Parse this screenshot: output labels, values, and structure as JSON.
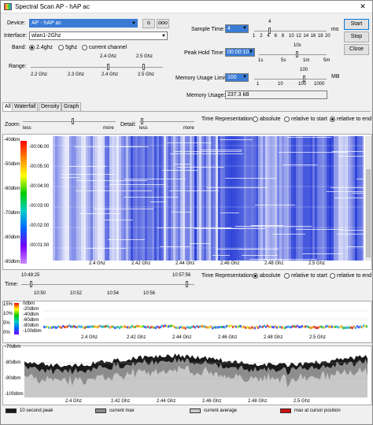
{
  "window": {
    "title": "Spectral Scan AP - hAP ac"
  },
  "device": {
    "label": "Device:",
    "value": "AP - hAP ac",
    "btn1": "o",
    "btn2": "ooo"
  },
  "interface": {
    "label": "Interface:",
    "value": "wlan1-2Ghz"
  },
  "band": {
    "label": "Band:",
    "options": [
      "2.4ghz",
      "5ghz",
      "current channel"
    ],
    "selected": 0
  },
  "range": {
    "label": "Range:",
    "top_ticks": [
      "2.4 Ghz",
      "2.5 Ghz"
    ],
    "bottom_ticks": [
      "2.2 Ghz",
      "2.3 Ghz",
      "2.4 Ghz",
      "2.5 Ghz"
    ]
  },
  "sample_time": {
    "label": "Sample Time:",
    "value": "4",
    "unit": "ms",
    "top_tick": "4",
    "ticks": [
      "1",
      "2",
      "4",
      "6",
      "8",
      "10",
      "12",
      "14",
      "16",
      "18",
      "20"
    ]
  },
  "peak_hold": {
    "label": "Peak Hold Time:",
    "value": "00:00:10",
    "top_tick": "10s",
    "ticks": [
      "1s",
      "5s",
      "1m",
      "5m"
    ]
  },
  "memory_limit": {
    "label": "Memory Usage Limit:",
    "value": "100",
    "unit": "MB",
    "top_tick": "100",
    "ticks": [
      "1",
      "10",
      "100",
      "1000"
    ]
  },
  "memory_usage": {
    "label": "Memory Usage:",
    "value": "237.3 kB"
  },
  "buttons": {
    "start": "Start",
    "stop": "Stop",
    "close": "Close"
  },
  "tabs": [
    "All",
    "Waterfall",
    "Density",
    "Graph"
  ],
  "zoom": {
    "label": "Zoom:",
    "less": "less",
    "more": "more"
  },
  "detail": {
    "label": "Detail:",
    "less": "less",
    "more": "more"
  },
  "time_rep1": {
    "label": "Time Representation:",
    "options": [
      "absolute",
      "relative to start",
      "relative to end"
    ],
    "selected": 2
  },
  "waterfall": {
    "db_ticks": [
      "-40dbm",
      "-50dbm",
      "-60dbm",
      "-70dbm",
      "-80dbm",
      "-90dbm"
    ],
    "time_ticks": [
      "-00:06:00",
      "-00:05:00",
      "-00:04:00",
      "-00:03:00",
      "-00:02:00",
      "-00:01:00"
    ],
    "freq_ticks": [
      "2.4 Ghz",
      "2.42 Ghz",
      "2.44 Ghz",
      "2.46 Ghz",
      "2.48 Ghz",
      "2.5 Ghz"
    ]
  },
  "time": {
    "label": "Time:",
    "start": "10:49:25",
    "end": "10:57:56",
    "ticks": [
      "10:50",
      "10:52",
      "10:54",
      "10:56"
    ]
  },
  "time_rep2": {
    "label": "Time Representation:",
    "options": [
      "absolute",
      "relative to start",
      "relative to end"
    ],
    "selected": 0
  },
  "density": {
    "pct_ticks": [
      "15%",
      "10%",
      "5%",
      "0%"
    ],
    "db_ticks": [
      "0dbm",
      "-20dbm",
      "-40dbm",
      "-60dbm",
      "-80dbm",
      "-100dbm"
    ],
    "freq_ticks": [
      "2.4 Ghz",
      "2.42 Ghz",
      "2.44 Ghz",
      "2.46 Ghz",
      "2.48 Ghz",
      "2.5 Ghz"
    ]
  },
  "graph": {
    "db_ticks": [
      "-70dbm",
      "-80dbm",
      "-90dbm",
      "-100dbm"
    ],
    "freq_ticks": [
      "2.4 Ghz",
      "2.42 Ghz",
      "2.44 Ghz",
      "2.46 Ghz",
      "2.48 Ghz",
      "2.5 Ghz"
    ]
  },
  "legend": [
    "10 second peak",
    "current max",
    "current average",
    "max at cursor position"
  ],
  "colors": {
    "selection": "#3a7bd5",
    "waterfall_bg": "#ffffff",
    "waterfall_signal": "#2a3fd8",
    "peak": "#1a1a1a",
    "max": "#8c8c8c",
    "average": "#c8c8c8",
    "cursor_max": "#cc1111"
  }
}
